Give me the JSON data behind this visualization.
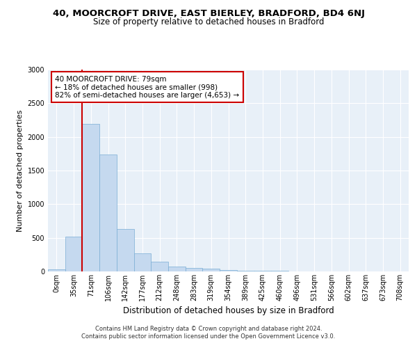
{
  "title_line1": "40, MOORCROFT DRIVE, EAST BIERLEY, BRADFORD, BD4 6NJ",
  "title_line2": "Size of property relative to detached houses in Bradford",
  "xlabel": "Distribution of detached houses by size in Bradford",
  "ylabel": "Number of detached properties",
  "footer_line1": "Contains HM Land Registry data © Crown copyright and database right 2024.",
  "footer_line2": "Contains public sector information licensed under the Open Government Licence v3.0.",
  "annotation_line1": "40 MOORCROFT DRIVE: 79sqm",
  "annotation_line2": "← 18% of detached houses are smaller (998)",
  "annotation_line3": "82% of semi-detached houses are larger (4,653) →",
  "bar_labels": [
    "0sqm",
    "35sqm",
    "71sqm",
    "106sqm",
    "142sqm",
    "177sqm",
    "212sqm",
    "248sqm",
    "283sqm",
    "319sqm",
    "354sqm",
    "389sqm",
    "425sqm",
    "460sqm",
    "496sqm",
    "531sqm",
    "566sqm",
    "602sqm",
    "637sqm",
    "673sqm",
    "708sqm"
  ],
  "bar_values": [
    30,
    520,
    2190,
    1740,
    635,
    270,
    145,
    75,
    55,
    45,
    20,
    15,
    10,
    8,
    5,
    3,
    2,
    1,
    1,
    0,
    0
  ],
  "bar_color": "#c5d9ef",
  "bar_edge_color": "#7aadd4",
  "vline_color": "#cc0000",
  "vline_x": 1.5,
  "annotation_box_color": "#cc0000",
  "ylim": [
    0,
    3000
  ],
  "yticks": [
    0,
    500,
    1000,
    1500,
    2000,
    2500,
    3000
  ],
  "background_color": "#e8f0f8",
  "grid_color": "#ffffff",
  "title_fontsize": 9.5,
  "subtitle_fontsize": 8.5,
  "axis_label_fontsize": 8,
  "tick_fontsize": 7,
  "annotation_fontsize": 7.5,
  "footer_fontsize": 6
}
